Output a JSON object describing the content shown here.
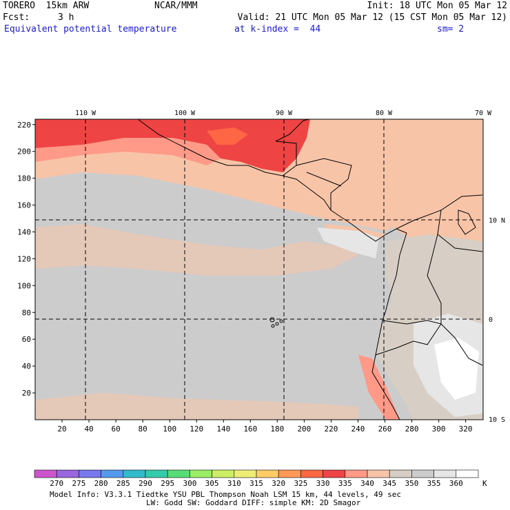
{
  "header": {
    "model": "TORERO  15km ARW",
    "center": "NCAR/MMM",
    "init": "Init: 18 UTC Mon 05 Mar 12",
    "fcst_label": "Fcst:",
    "fcst_value": "3 h",
    "valid": "Valid: 21 UTC Mon 05 Mar 12 (15 CST Mon 05 Mar 12)",
    "field": "Equivalent potential temperature",
    "level": "at k-index =  44",
    "smoothing": "sm= 2"
  },
  "map": {
    "lon_labels": [
      "110 W",
      "100 W",
      "90 W",
      "80 W",
      "70 W"
    ],
    "lat_labels": [
      "10 N",
      "0",
      "10 S"
    ],
    "y_ticks": [
      "20",
      "40",
      "60",
      "80",
      "100",
      "120",
      "140",
      "160",
      "180",
      "200",
      "220"
    ],
    "x_ticks": [
      "20",
      "40",
      "60",
      "80",
      "100",
      "120",
      "140",
      "160",
      "180",
      "200",
      "220",
      "240",
      "260",
      "280",
      "300",
      "320"
    ],
    "ocean_value_k": 347,
    "colors": {
      "ocean": "#cccccc",
      "border": "#000000",
      "gridline": "#000000"
    }
  },
  "colorbar": {
    "unit": "K",
    "labels": [
      "270",
      "275",
      "280",
      "285",
      "290",
      "295",
      "300",
      "305",
      "310",
      "315",
      "320",
      "325",
      "330",
      "335",
      "340",
      "345",
      "350",
      "355",
      "360"
    ],
    "colors": [
      "#cc55cc",
      "#9966dd",
      "#7777ee",
      "#5599ee",
      "#33bbcc",
      "#33ccaa",
      "#55dd77",
      "#99ee66",
      "#ccee66",
      "#eeee77",
      "#ffcc66",
      "#ff9955",
      "#ff6644",
      "#ee4444",
      "#ff9988",
      "#f7c4a8",
      "#d7cfc5",
      "#cccccc",
      "#e6e6e6",
      "#ffffff"
    ]
  },
  "footer": {
    "line1": "Model Info: V3.3.1    Tiedtke YSU PBL   Thompson     Noah LSM  15 km,    44 levels,    49 sec",
    "line2": "LW: Godd SW: Goddard DIFF: simple KM: 2D Smagor"
  }
}
